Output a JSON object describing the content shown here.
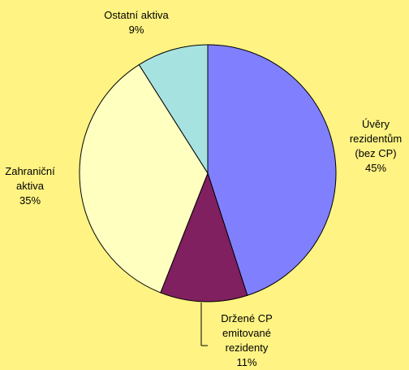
{
  "chart_data": {
    "type": "pie",
    "categories": [
      "Úvěry rezidentům (bez CP)",
      "Držené CP emitované rezidenty",
      "Zahraniční aktiva",
      "Ostatní aktiva"
    ],
    "values": [
      45,
      11,
      35,
      9
    ],
    "value_labels": [
      "45%",
      "11%",
      "35%",
      "9%"
    ],
    "colors": [
      "#8080ff",
      "#802060",
      "#ffffc0",
      "#a6e3e0"
    ]
  }
}
